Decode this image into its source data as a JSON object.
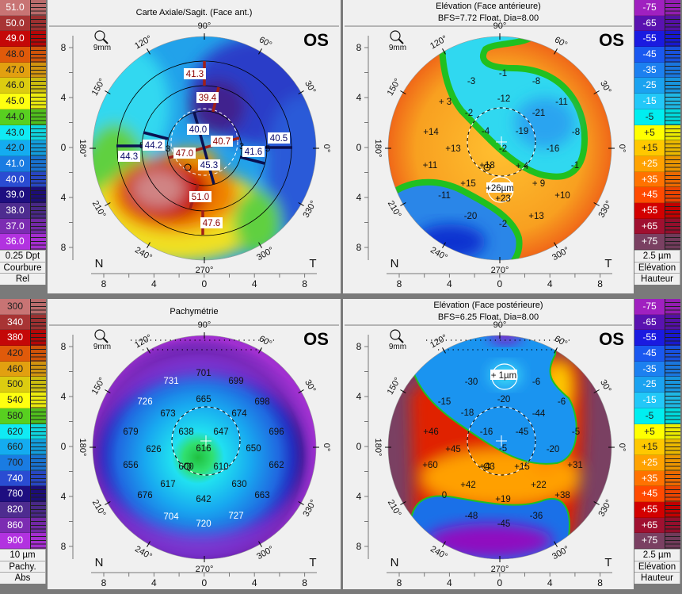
{
  "panels": [
    {
      "id": "axial",
      "title": "Carte Axiale/Sagit. (Face ant.)",
      "subtitle": "",
      "eye": "OS",
      "magnifier_label": "9mm",
      "nasal": "N",
      "temporal": "T",
      "ring_labels": [
        "3",
        "5",
        "3",
        "5"
      ],
      "values": [
        {
          "text": "41.3",
          "kind": "steep"
        },
        {
          "text": "39.4",
          "kind": "steep"
        },
        {
          "text": "40.0",
          "kind": "flat"
        },
        {
          "text": "40.7",
          "kind": "steep"
        },
        {
          "text": "44.2",
          "kind": "flat"
        },
        {
          "text": "44.3",
          "kind": "flat"
        },
        {
          "text": "47.0",
          "kind": "steep"
        },
        {
          "text": "45.3",
          "kind": "flat"
        },
        {
          "text": "41.6",
          "kind": "flat"
        },
        {
          "text": "40.5",
          "kind": "flat"
        },
        {
          "text": "51.0",
          "kind": "steep"
        },
        {
          "text": "47.6",
          "kind": "steep"
        }
      ]
    },
    {
      "id": "elev-ant",
      "title": "Elévation (Face antérieure)",
      "subtitle": "BFS=7.72 Float, Dia=8.00",
      "eye": "OS",
      "magnifier_label": "9mm",
      "nasal": "N",
      "temporal": "T",
      "values": [
        {
          "text": "-1"
        },
        {
          "text": "-3"
        },
        {
          "text": "-8"
        },
        {
          "text": "+ 3"
        },
        {
          "text": "-12"
        },
        {
          "text": "-11"
        },
        {
          "text": "-2"
        },
        {
          "text": "-21"
        },
        {
          "text": "+14"
        },
        {
          "text": "-4"
        },
        {
          "text": "-19"
        },
        {
          "text": "-8"
        },
        {
          "text": "+13"
        },
        {
          "text": "-2"
        },
        {
          "text": "-16"
        },
        {
          "text": "+11"
        },
        {
          "text": "+18"
        },
        {
          "text": "+ 4"
        },
        {
          "text": "-1"
        },
        {
          "text": "+15"
        },
        {
          "text": "+26µm",
          "highlight": true
        },
        {
          "text": "+ 9"
        },
        {
          "text": "-11"
        },
        {
          "text": "+23"
        },
        {
          "text": "+10"
        },
        {
          "text": "-20"
        },
        {
          "text": "+13"
        },
        {
          "text": "-2"
        }
      ]
    },
    {
      "id": "pachy",
      "title": "Pachymétrie",
      "subtitle": "",
      "eye": "OS",
      "magnifier_label": "9mm",
      "nasal": "N",
      "temporal": "T",
      "values": [
        {
          "text": "701"
        },
        {
          "text": "731",
          "light": true
        },
        {
          "text": "699"
        },
        {
          "text": "665"
        },
        {
          "text": "726",
          "light": true
        },
        {
          "text": "698"
        },
        {
          "text": "673"
        },
        {
          "text": "674"
        },
        {
          "text": "679"
        },
        {
          "text": "638"
        },
        {
          "text": "647"
        },
        {
          "text": "696"
        },
        {
          "text": "626"
        },
        {
          "text": "616"
        },
        {
          "text": "650"
        },
        {
          "text": "656"
        },
        {
          "text": "600"
        },
        {
          "text": "610"
        },
        {
          "text": "662"
        },
        {
          "text": "617"
        },
        {
          "text": "630"
        },
        {
          "text": "676"
        },
        {
          "text": "642"
        },
        {
          "text": "663"
        },
        {
          "text": "704",
          "light": true
        },
        {
          "text": "727",
          "light": true
        },
        {
          "text": "720",
          "light": true
        }
      ]
    },
    {
      "id": "elev-post",
      "title": "Elévation (Face postérieure)",
      "subtitle": "BFS=6.25 Float, Dia=8.00",
      "eye": "OS",
      "magnifier_label": "9mm",
      "nasal": "N",
      "temporal": "T",
      "values": [
        {
          "text": "+ 1µm",
          "highlight": true
        },
        {
          "text": "-30"
        },
        {
          "text": "-6"
        },
        {
          "text": "-20"
        },
        {
          "text": "-15"
        },
        {
          "text": "-6"
        },
        {
          "text": "-18"
        },
        {
          "text": "-44"
        },
        {
          "text": "+46"
        },
        {
          "text": "-16"
        },
        {
          "text": "-45"
        },
        {
          "text": "-5"
        },
        {
          "text": "+45"
        },
        {
          "text": "-5"
        },
        {
          "text": "-20"
        },
        {
          "text": "+60"
        },
        {
          "text": "+43"
        },
        {
          "text": "+15"
        },
        {
          "text": "+31"
        },
        {
          "text": "+42"
        },
        {
          "text": "+22"
        },
        {
          "text": "0"
        },
        {
          "text": "+19"
        },
        {
          "text": "+38"
        },
        {
          "text": "-48"
        },
        {
          "text": "-36"
        },
        {
          "text": "-45"
        }
      ]
    }
  ],
  "angle_labels": [
    "90°",
    "60°",
    "30°",
    "0°",
    "330°",
    "300°",
    "270°",
    "240°",
    "210°",
    "180°",
    "150°",
    "120°"
  ],
  "axis_ticks": [
    "8",
    "4",
    "0",
    "4",
    "8"
  ],
  "scales": [
    {
      "id": "curvature",
      "footer": [
        "0.25 Dpt",
        "Courbure",
        "Rel"
      ],
      "rows": [
        {
          "label": "51.0",
          "color": "#c87474",
          "text": "#fff"
        },
        {
          "label": "50.0",
          "color": "#a83434",
          "text": "#fff"
        },
        {
          "label": "49.0",
          "color": "#c40808",
          "text": "#fff"
        },
        {
          "label": "48.0",
          "color": "#e05a0a",
          "text": "#222"
        },
        {
          "label": "47.0",
          "color": "#e2a010",
          "text": "#222"
        },
        {
          "label": "46.0",
          "color": "#dccc10",
          "text": "#222"
        },
        {
          "label": "45.0",
          "color": "#ffff10",
          "text": "#222"
        },
        {
          "label": "44.0",
          "color": "#58d020",
          "text": "#222"
        },
        {
          "label": "43.0",
          "color": "#10eaf4",
          "text": "#222"
        },
        {
          "label": "42.0",
          "color": "#14acf0",
          "text": "#222"
        },
        {
          "label": "41.0",
          "color": "#1a7ce2",
          "text": "#fff"
        },
        {
          "label": "40.0",
          "color": "#2a4cd2",
          "text": "#fff"
        },
        {
          "label": "39.0",
          "color": "#1e0e80",
          "text": "#fff"
        },
        {
          "label": "38.0",
          "color": "#4e2c90",
          "text": "#fff"
        },
        {
          "label": "37.0",
          "color": "#7c2cb2",
          "text": "#fff"
        },
        {
          "label": "36.0",
          "color": "#b232e0",
          "text": "#fff"
        }
      ]
    },
    {
      "id": "elevation-ant",
      "footer": [
        "2.5 µm",
        "Elévation",
        "Hauteur"
      ],
      "rows": [
        {
          "label": "-75",
          "color": "#a020c0",
          "text": "#fff"
        },
        {
          "label": "-65",
          "color": "#5a12b0",
          "text": "#fff"
        },
        {
          "label": "-55",
          "color": "#1a1ae0",
          "text": "#fff"
        },
        {
          "label": "-45",
          "color": "#1a58f0",
          "text": "#fff"
        },
        {
          "label": "-35",
          "color": "#1c80f0",
          "text": "#fff"
        },
        {
          "label": "-25",
          "color": "#1aa2f0",
          "text": "#fff"
        },
        {
          "label": "-15",
          "color": "#22c8f8",
          "text": "#fff"
        },
        {
          "label": "-5",
          "color": "#00eef0",
          "text": "#222"
        },
        {
          "label": "+5",
          "color": "#ffff00",
          "text": "#222"
        },
        {
          "label": "+15",
          "color": "#ffc800",
          "text": "#222"
        },
        {
          "label": "+25",
          "color": "#ffa200",
          "text": "#fff"
        },
        {
          "label": "+35",
          "color": "#ff7200",
          "text": "#fff"
        },
        {
          "label": "+45",
          "color": "#ff4a00",
          "text": "#fff"
        },
        {
          "label": "+55",
          "color": "#d20000",
          "text": "#fff"
        },
        {
          "label": "+65",
          "color": "#a01030",
          "text": "#fff"
        },
        {
          "label": "+75",
          "color": "#7a4062",
          "text": "#fff"
        }
      ]
    },
    {
      "id": "pachymetry",
      "footer": [
        "10 µm",
        "Pachy.",
        "Abs"
      ],
      "rows": [
        {
          "label": "300",
          "color": "#c87474",
          "text": "#222"
        },
        {
          "label": "340",
          "color": "#a83434",
          "text": "#fff"
        },
        {
          "label": "380",
          "color": "#c40808",
          "text": "#fff"
        },
        {
          "label": "420",
          "color": "#e05a0a",
          "text": "#222"
        },
        {
          "label": "460",
          "color": "#e2a010",
          "text": "#222"
        },
        {
          "label": "500",
          "color": "#dccc10",
          "text": "#222"
        },
        {
          "label": "540",
          "color": "#ffff10",
          "text": "#222"
        },
        {
          "label": "580",
          "color": "#58d020",
          "text": "#222"
        },
        {
          "label": "620",
          "color": "#10eaf4",
          "text": "#222"
        },
        {
          "label": "660",
          "color": "#14acf0",
          "text": "#222"
        },
        {
          "label": "700",
          "color": "#1a7ce2",
          "text": "#222"
        },
        {
          "label": "740",
          "color": "#2a4cd2",
          "text": "#fff"
        },
        {
          "label": "780",
          "color": "#1e0e80",
          "text": "#fff"
        },
        {
          "label": "820",
          "color": "#4e2c90",
          "text": "#fff"
        },
        {
          "label": "860",
          "color": "#7c2cb2",
          "text": "#fff"
        },
        {
          "label": "900",
          "color": "#b232e0",
          "text": "#fff"
        }
      ]
    },
    {
      "id": "elevation-post",
      "footer": [
        "2.5 µm",
        "Elévation",
        "Hauteur"
      ],
      "same_rows_as": "elevation-ant"
    }
  ],
  "colors": {
    "contour_green": "#20c020",
    "steep_label": "#8a0000",
    "flat_label": "#0a0a6a",
    "meridian_steep": "#a02018",
    "meridian_flat": "#0a1050"
  }
}
